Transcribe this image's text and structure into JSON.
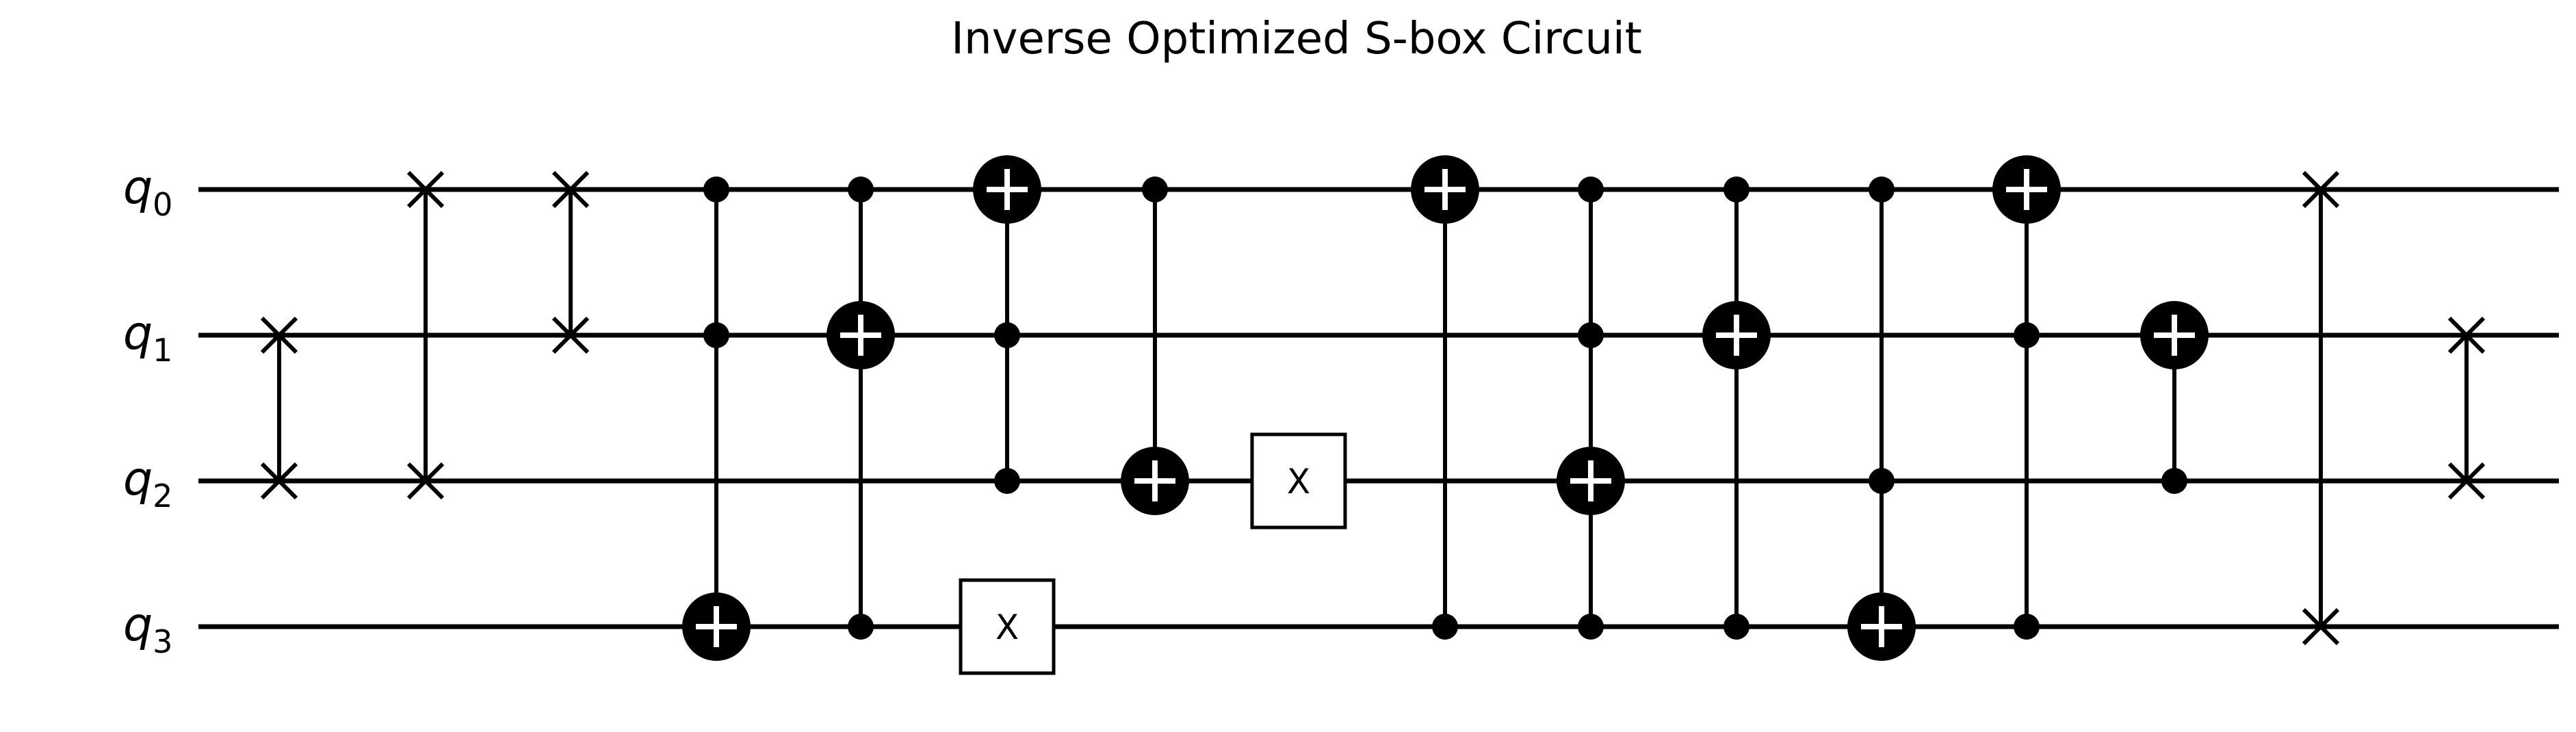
{
  "title": "Inverse Optimized S-box Circuit",
  "qubits": [
    {
      "symbol": "q",
      "index": "0"
    },
    {
      "symbol": "q",
      "index": "1"
    },
    {
      "symbol": "q",
      "index": "2"
    },
    {
      "symbol": "q",
      "index": "3"
    }
  ],
  "gates": [
    {
      "type": "swap",
      "qubits": [
        1,
        2
      ]
    },
    {
      "type": "swap",
      "qubits": [
        0,
        2
      ]
    },
    {
      "type": "swap",
      "qubits": [
        0,
        1
      ]
    },
    {
      "type": "mcx",
      "controls": [
        0,
        1
      ],
      "target": 3
    },
    {
      "type": "mcx",
      "controls": [
        0,
        3
      ],
      "target": 1
    },
    {
      "type": "mcx",
      "controls": [
        1,
        2
      ],
      "target": 0
    },
    {
      "type": "x",
      "qubit": 3,
      "label": "X"
    },
    {
      "type": "mcx",
      "controls": [
        0
      ],
      "target": 2
    },
    {
      "type": "x",
      "qubit": 2,
      "label": "X"
    },
    {
      "type": "mcx",
      "controls": [
        3
      ],
      "target": 0
    },
    {
      "type": "mcx",
      "controls": [
        0,
        1,
        3
      ],
      "target": 2
    },
    {
      "type": "mcx",
      "controls": [
        0,
        3
      ],
      "target": 1
    },
    {
      "type": "mcx",
      "controls": [
        0,
        2
      ],
      "target": 3
    },
    {
      "type": "mcx",
      "controls": [
        1,
        3
      ],
      "target": 0
    },
    {
      "type": "mcx",
      "controls": [
        2
      ],
      "target": 1
    },
    {
      "type": "swap",
      "qubits": [
        0,
        3
      ]
    },
    {
      "type": "swap",
      "qubits": [
        1,
        2
      ]
    }
  ]
}
